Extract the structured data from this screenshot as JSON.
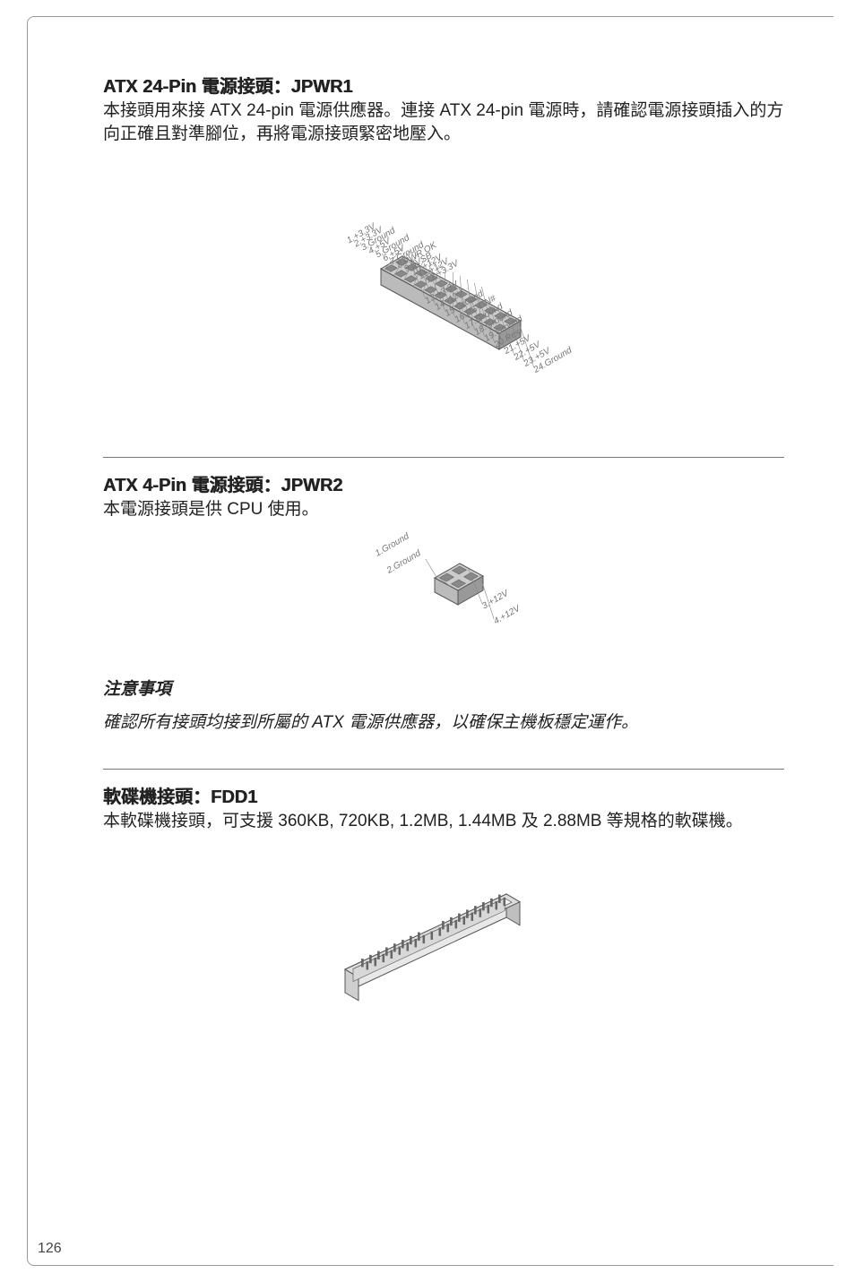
{
  "page": {
    "number": "126"
  },
  "section1": {
    "heading": "ATX 24-Pin 電源接頭：JPWR1",
    "body": "本接頭用來接 ATX 24-pin 電源供應器。連接 ATX 24-pin 電源時，請確認電源接頭插入的方向正確且對準腳位，再將電源接頭緊密地壓入。",
    "diagram": {
      "type": "isometric-connector",
      "pins_left": [
        {
          "n": "12",
          "label": "+3.3V"
        },
        {
          "n": "11",
          "label": "+12V"
        },
        {
          "n": "10",
          "label": "+12V"
        },
        {
          "n": "9",
          "label": "5VSB"
        },
        {
          "n": "8",
          "label": "PWR OK"
        },
        {
          "n": "7",
          "label": "Ground"
        },
        {
          "n": "6",
          "label": "+5V"
        },
        {
          "n": "5",
          "label": "Ground"
        },
        {
          "n": "4",
          "label": "+5V"
        },
        {
          "n": "3",
          "label": "Ground"
        },
        {
          "n": "2",
          "label": "+3.3V"
        },
        {
          "n": "1",
          "label": "+3.3V"
        }
      ],
      "pins_right": [
        {
          "n": "24",
          "label": "Ground"
        },
        {
          "n": "23",
          "label": "+5V"
        },
        {
          "n": "22",
          "label": "+5V"
        },
        {
          "n": "21",
          "label": "+5V"
        },
        {
          "n": "20",
          "label": "Res"
        },
        {
          "n": "19",
          "label": "Ground"
        },
        {
          "n": "18",
          "label": "Ground"
        },
        {
          "n": "17",
          "label": "Ground"
        },
        {
          "n": "16",
          "label": "PS-ON#"
        },
        {
          "n": "15",
          "label": "Ground"
        },
        {
          "n": "14",
          "label": "-12V"
        },
        {
          "n": "13",
          "label": "+3.3V"
        }
      ],
      "colors": {
        "stroke": "#555",
        "fill": "#ccc",
        "text": "#777"
      }
    }
  },
  "section2": {
    "heading": "ATX 4-Pin 電源接頭：JPWR2",
    "body": "本電源接頭是供 CPU 使用。",
    "diagram": {
      "type": "isometric-connector-small",
      "pins_left": [
        {
          "n": "1",
          "label": "Ground"
        },
        {
          "n": "2",
          "label": "Ground"
        }
      ],
      "pins_right": [
        {
          "n": "3",
          "label": "+12V"
        },
        {
          "n": "4",
          "label": "+12V"
        }
      ],
      "colors": {
        "stroke": "#555",
        "fill": "#ccc",
        "text": "#777"
      }
    },
    "note_heading": "注意事項",
    "note_text": "確認所有接頭均接到所屬的 ATX 電源供應器，以確保主機板穩定運作。"
  },
  "section3": {
    "heading": "軟碟機接頭：FDD1",
    "body": "本軟碟機接頭，可支援 360KB, 720KB, 1.2MB, 1.44MB 及 2.88MB 等規格的軟碟機。",
    "diagram": {
      "type": "fdd-connector",
      "colors": {
        "stroke": "#555",
        "fill": "#ddd"
      }
    }
  }
}
